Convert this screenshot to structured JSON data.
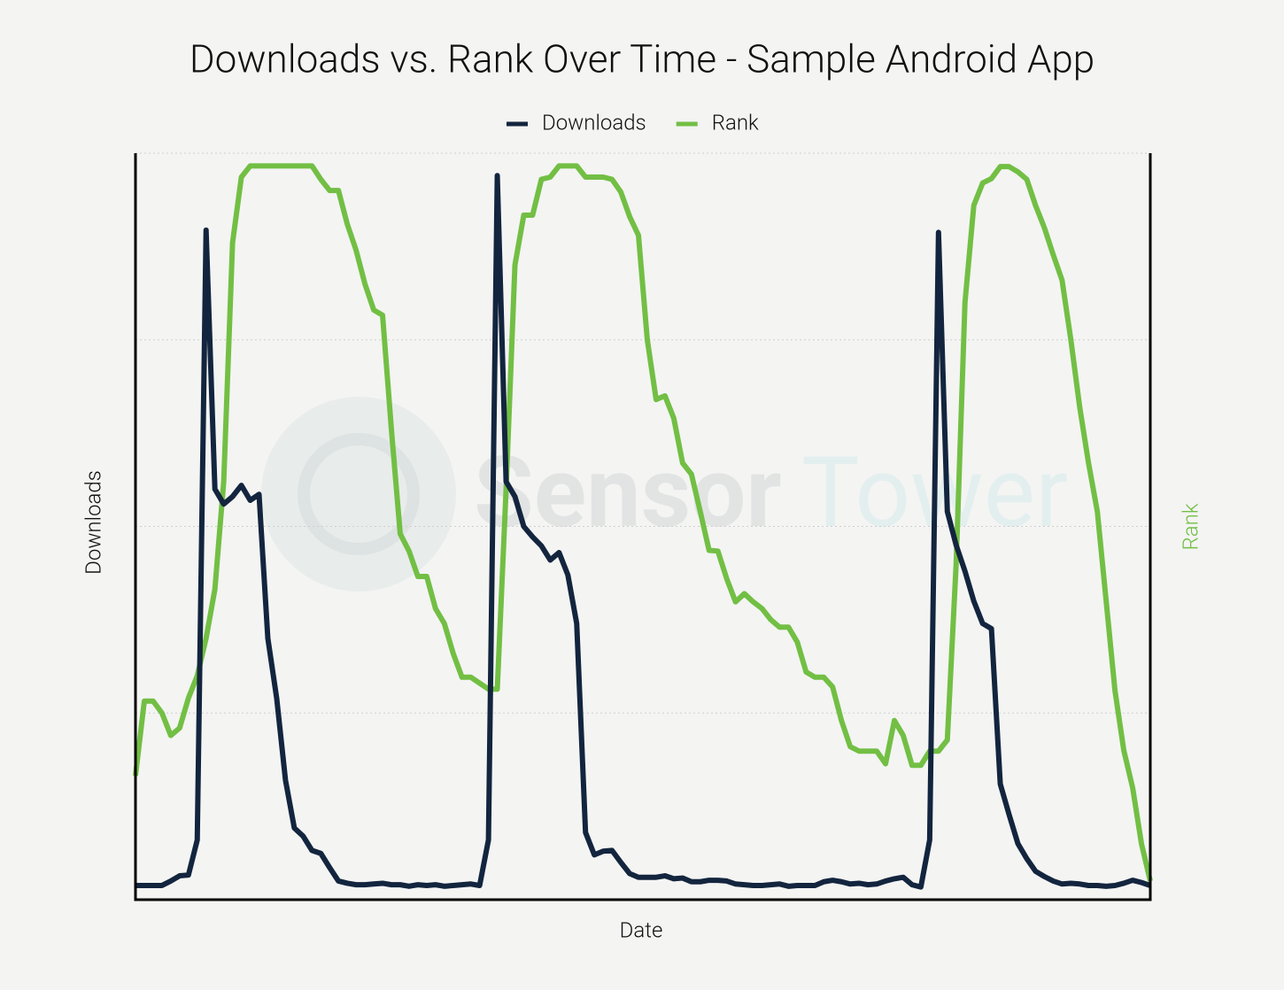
{
  "chart_data": {
    "type": "line",
    "title": "Downloads vs. Rank Over Time - Sample Android App",
    "x_label": "Date",
    "y_label": "Downloads",
    "y2_label": "Rank",
    "watermark": [
      "Sensor",
      "Tower"
    ],
    "categories": [
      null,
      null,
      null,
      null,
      null,
      null,
      null,
      null,
      null,
      null,
      null,
      null,
      null,
      null,
      null,
      null,
      null,
      null,
      null,
      null,
      null,
      null,
      null,
      null,
      null,
      null,
      null,
      null,
      null,
      null,
      null,
      null,
      null,
      null,
      null,
      null,
      null,
      null,
      null,
      null,
      null,
      null,
      null,
      null,
      null,
      null,
      null,
      null,
      null,
      null,
      null,
      null,
      null,
      null,
      null,
      null,
      null,
      null,
      null,
      null,
      null,
      null,
      null,
      null,
      null,
      null,
      null,
      null,
      null,
      null,
      null,
      null,
      null,
      null,
      null,
      null,
      null,
      null,
      null,
      null,
      null,
      null,
      null,
      null,
      null,
      null,
      null,
      null,
      null,
      null,
      null,
      null,
      null,
      null,
      null,
      null,
      null,
      null,
      null,
      null,
      null,
      null,
      null,
      null,
      null,
      null,
      null,
      null,
      null,
      null,
      null,
      null,
      null,
      null,
      null,
      null
    ],
    "series": [
      {
        "name": "Downloads",
        "color": "#13253e",
        "values": [
          1.9,
          1.9,
          1.9,
          1.9,
          2.5,
          3.2,
          3.3,
          8,
          89.7,
          55,
          53,
          54,
          55.5,
          53.5,
          54.3,
          35,
          27,
          16,
          9.6,
          8.5,
          6.6,
          6.2,
          4.3,
          2.5,
          2.2,
          2.0,
          2.0,
          2.1,
          2.2,
          2.0,
          2.0,
          1.8,
          2.0,
          1.9,
          2.0,
          1.8,
          1.9,
          2.0,
          2.1,
          1.9,
          8,
          97,
          56,
          54,
          50,
          48.6,
          47.4,
          45.5,
          46.5,
          43.5,
          37,
          9,
          6,
          6.5,
          6.6,
          5,
          3.5,
          3,
          3,
          3,
          3.2,
          2.8,
          2.9,
          2.4,
          2.4,
          2.6,
          2.6,
          2.5,
          2.1,
          2.0,
          1.9,
          1.9,
          2.0,
          2.1,
          1.8,
          1.9,
          1.9,
          1.9,
          2.4,
          2.6,
          2.4,
          2.1,
          2.2,
          2.0,
          2.1,
          2.5,
          2.8,
          3.0,
          2.0,
          1.7,
          8,
          89.4,
          52,
          47.5,
          44,
          40,
          37,
          36.3,
          15.5,
          11.4,
          7.5,
          5.5,
          3.8,
          3.1,
          2.5,
          2.1,
          2.2,
          2.1,
          1.9,
          1.9,
          1.8,
          1.9,
          2.2,
          2.6,
          2.3,
          1.9
        ]
      },
      {
        "name": "Rank",
        "color": "#72bf44",
        "axis": "y2",
        "values": [
          16.6,
          26.6,
          26.6,
          25,
          22,
          23,
          27,
          30,
          35,
          41.6,
          56,
          88,
          96.8,
          98.3,
          98.3,
          98.3,
          98.3,
          98.3,
          98.3,
          98.3,
          98.3,
          96.5,
          95,
          95,
          90.5,
          87,
          82.5,
          79,
          78.3,
          63,
          49,
          46.7,
          43.3,
          43.3,
          39,
          37,
          33,
          29.8,
          29.8,
          29,
          28.2,
          28.2,
          55,
          85,
          91.7,
          91.7,
          96.5,
          96.8,
          98.3,
          98.3,
          98.3,
          96.8,
          96.8,
          96.8,
          96.5,
          94.8,
          91.5,
          89,
          75,
          67,
          67.5,
          64.5,
          58.5,
          57,
          52,
          46.8,
          46.7,
          43,
          39.9,
          41,
          39.9,
          39,
          37.5,
          36.5,
          36.5,
          34.5,
          30.5,
          29.8,
          29.8,
          28.5,
          24,
          20.5,
          19.9,
          19.9,
          19.9,
          18.2,
          24,
          22,
          18,
          18,
          19.9,
          19.9,
          21.4,
          45,
          80,
          93,
          96,
          96.6,
          98.2,
          98.2,
          97.5,
          96.5,
          93,
          90,
          86.4,
          83,
          75,
          66,
          58.5,
          52,
          40,
          28,
          20,
          15,
          7.5,
          2.5
        ]
      }
    ],
    "ylim": [
      0,
      100
    ],
    "yticks": [
      0,
      25,
      50,
      75,
      100
    ],
    "y2lim": [
      0,
      100
    ],
    "grid": true,
    "legend": "top"
  }
}
